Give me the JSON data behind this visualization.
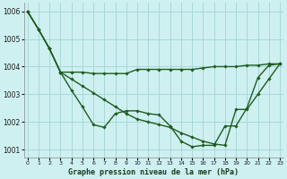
{
  "title": "Graphe pression niveau de la mer (hPa)",
  "bg_color": "#cef0f0",
  "grid_color": "#a8d8d8",
  "line_color": "#1f5c1f",
  "x_labels": [
    "0",
    "1",
    "2",
    "3",
    "4",
    "5",
    "6",
    "7",
    "8",
    "9",
    "10",
    "11",
    "12",
    "13",
    "14",
    "15",
    "16",
    "17",
    "18",
    "19",
    "20",
    "21",
    "22",
    "23"
  ],
  "ylim": [
    1000.7,
    1006.3
  ],
  "yticks": [
    1001,
    1002,
    1003,
    1004,
    1005,
    1006
  ],
  "series": [
    {
      "x": [
        0,
        1,
        2,
        3,
        4,
        5,
        6,
        7,
        8,
        9,
        10,
        11,
        12,
        13,
        14,
        15,
        16,
        17,
        18,
        19,
        20,
        21,
        22,
        23
      ],
      "y": [
        1006.0,
        1005.35,
        1004.65,
        1003.8,
        1003.15,
        1002.55,
        1001.9,
        1001.8,
        1002.3,
        1002.4,
        1002.4,
        1002.3,
        1002.25,
        1001.85,
        1001.3,
        1001.1,
        1001.15,
        1001.15,
        1001.85,
        1001.85,
        1002.5,
        1003.6,
        1004.05,
        1004.1
      ],
      "linewidth": 1.0
    },
    {
      "x": [
        0,
        1,
        2,
        3,
        4,
        5,
        6,
        7,
        8,
        9,
        10,
        11,
        12,
        13,
        14,
        15,
        16,
        17,
        18,
        19,
        20,
        21,
        22,
        23
      ],
      "y": [
        1006.0,
        1005.35,
        1004.65,
        1003.8,
        1003.8,
        1003.8,
        1003.75,
        1003.75,
        1003.75,
        1003.75,
        1003.9,
        1003.9,
        1003.9,
        1003.9,
        1003.9,
        1003.9,
        1003.95,
        1004.0,
        1004.0,
        1004.0,
        1004.05,
        1004.05,
        1004.1,
        1004.1
      ],
      "linewidth": 1.0
    },
    {
      "x": [
        0,
        1,
        2,
        3,
        4,
        5,
        6,
        7,
        8,
        9,
        10,
        11,
        12,
        13,
        14,
        15,
        16,
        17,
        18,
        19,
        20,
        21,
        22,
        23
      ],
      "y": [
        1006.0,
        1005.35,
        1004.65,
        1003.8,
        1003.55,
        1003.3,
        1003.05,
        1002.8,
        1002.55,
        1002.3,
        1002.1,
        1002.0,
        1001.9,
        1001.8,
        1001.6,
        1001.45,
        1001.3,
        1001.2,
        1001.15,
        1002.45,
        1002.45,
        1003.0,
        1003.55,
        1004.1
      ],
      "linewidth": 1.0
    }
  ]
}
